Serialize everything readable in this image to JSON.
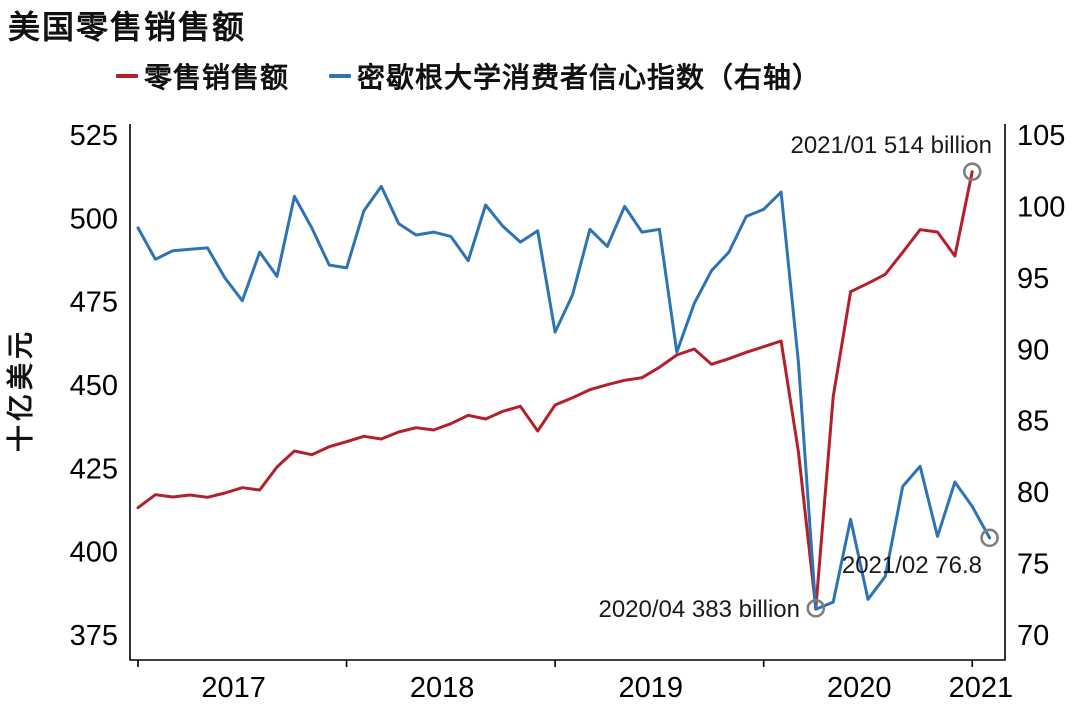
{
  "title": "美国零售销售额",
  "legend": [
    {
      "label": "零售销售额",
      "color": "#b3202c"
    },
    {
      "label": "密歇根大学消费者信心指数（右轴）",
      "color": "#2e74b5"
    }
  ],
  "left_axis": {
    "label": "十亿美元",
    "ticks": [
      525,
      500,
      475,
      450,
      425,
      400,
      375
    ]
  },
  "right_axis": {
    "ticks": [
      105,
      100,
      95,
      90,
      85,
      80,
      75,
      70
    ]
  },
  "x_axis": {
    "tick_labels": [
      "2017",
      "2018",
      "2019",
      "2020",
      "2021"
    ]
  },
  "annotations": [
    {
      "text": "2021/01 514 billion",
      "series_index": 0,
      "point_index": 48,
      "value": 514
    },
    {
      "text": "2020/04 383 billion",
      "series_index": 0,
      "point_index": 39,
      "value": 383
    },
    {
      "text": "2021/02 76.8",
      "series_index": 1,
      "point_index": 49,
      "value": 76.8
    }
  ],
  "chart_data": {
    "type": "line",
    "title": "美国零售销售额",
    "frequency": "monthly",
    "x_start": "2017-01",
    "ylabel_left": "十亿美元",
    "ylim_left": [
      375,
      525
    ],
    "ylim_right": [
      70,
      105
    ],
    "grid": false,
    "legend_position": "top",
    "series": [
      {
        "name": "零售销售额",
        "axis": "left",
        "color": "#b3202c",
        "x_end": "2021-01",
        "values": [
          413.2,
          417.1,
          416.4,
          417.0,
          416.3,
          417.6,
          419.2,
          418.5,
          425.4,
          430.2,
          429.1,
          431.5,
          433.0,
          434.6,
          433.8,
          435.9,
          437.2,
          436.5,
          438.4,
          440.9,
          439.8,
          442.1,
          443.6,
          436.2,
          444.0,
          446.2,
          448.6,
          450.1,
          451.4,
          452.2,
          455.3,
          459.0,
          460.8,
          456.2,
          457.9,
          459.8,
          461.5,
          463.2,
          430.0,
          383.0,
          446.5,
          478.0,
          480.5,
          483.2,
          489.8,
          496.6,
          495.9,
          488.7,
          514.0
        ]
      },
      {
        "name": "密歇根大学消费者信心指数",
        "axis": "right",
        "color": "#2e74b5",
        "x_end": "2021-02",
        "values": [
          98.5,
          96.3,
          96.9,
          97.0,
          97.1,
          95.0,
          93.4,
          96.8,
          95.1,
          100.7,
          98.5,
          95.9,
          95.7,
          99.7,
          101.4,
          98.8,
          98.0,
          98.2,
          97.9,
          96.2,
          100.1,
          98.6,
          97.5,
          98.3,
          91.2,
          93.8,
          98.4,
          97.2,
          100.0,
          98.2,
          98.4,
          89.8,
          93.2,
          95.5,
          96.8,
          99.3,
          99.8,
          101.0,
          89.1,
          71.8,
          72.3,
          78.1,
          72.5,
          74.1,
          80.4,
          81.8,
          76.9,
          80.7,
          79.0,
          76.8
        ]
      }
    ]
  }
}
